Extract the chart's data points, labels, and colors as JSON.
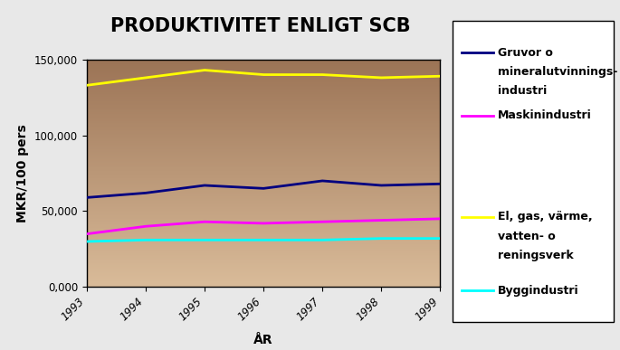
{
  "title": "PRODUKTIVITET ENLIGT SCB",
  "xlabel": "ÅR",
  "ylabel": "MKR/100 pers",
  "years": [
    1993,
    1994,
    1995,
    1996,
    1997,
    1998,
    1999
  ],
  "series_order": [
    "gruvor",
    "maskin",
    "el",
    "bygg"
  ],
  "series": {
    "gruvor": {
      "label_line1": "Gruvor o",
      "label_line2": "mineralutvinnings-",
      "label_line3": "industri",
      "color": "#000080",
      "values": [
        59000,
        62000,
        67000,
        65000,
        70000,
        67000,
        68000
      ]
    },
    "maskin": {
      "label": "Maskinindustri",
      "color": "#FF00FF",
      "values": [
        35000,
        40000,
        43000,
        42000,
        43000,
        44000,
        45000
      ]
    },
    "el": {
      "label_line1": "El, gas, värme,",
      "label_line2": "vatten- o",
      "label_line3": "reningsverk",
      "color": "#FFFF00",
      "values": [
        133000,
        138000,
        143000,
        140000,
        140000,
        138000,
        139000
      ]
    },
    "bygg": {
      "label": "Byggindustri",
      "color": "#00FFFF",
      "values": [
        30000,
        31000,
        31000,
        31000,
        31000,
        32000,
        32000
      ]
    }
  },
  "ylim": [
    0,
    150000
  ],
  "yticks": [
    0,
    50000,
    100000,
    150000
  ],
  "ytick_labels": [
    "0,000",
    "50,000",
    "100,000",
    "150,000"
  ],
  "fig_bg_color": "#e8e8e8",
  "plot_bg_top": "#9b7355",
  "plot_bg_bottom": "#d9bb99",
  "line_width": 2.0,
  "title_fontsize": 15,
  "axis_label_fontsize": 10,
  "tick_fontsize": 8.5,
  "legend_fontsize": 9
}
